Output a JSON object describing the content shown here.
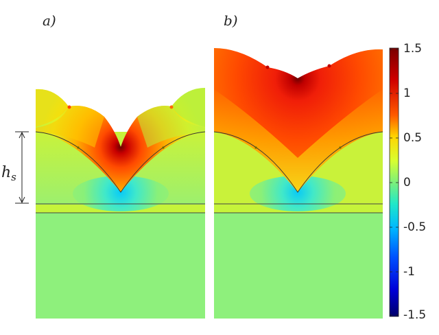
{
  "panels": [
    {
      "label": "a)"
    },
    {
      "label": "b)"
    }
  ],
  "dimension": {
    "symbol": "h",
    "subscript": "s"
  },
  "colorbar": {
    "ticks": [
      "1.5",
      "1",
      "0.5",
      "0",
      "-0.5",
      "-1",
      "-1.5"
    ],
    "range": [
      -1.5,
      1.5
    ]
  },
  "colors": {
    "background_field": "#8ef07c",
    "hot": "#e6170b",
    "peak": "#6b0000",
    "cold": "#18d8ff"
  }
}
